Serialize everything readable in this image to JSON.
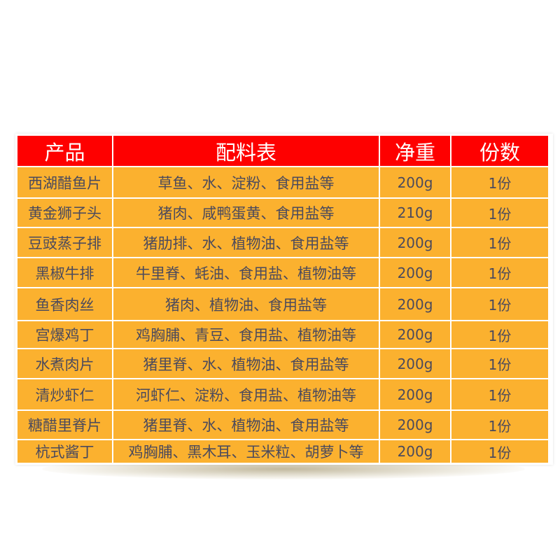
{
  "colors": {
    "header_bg": "#fe0000",
    "cell_bg": "#fbb12f",
    "text": "#4b4a5c"
  },
  "headers": [
    "产品",
    "配料表",
    "净重",
    "份数"
  ],
  "rows": [
    {
      "product": "西湖醋鱼片",
      "ingredients": "草鱼、水、淀粉、食用盐等",
      "weight": "200g",
      "portion": "1份"
    },
    {
      "product": "黄金狮子头",
      "ingredients": "猪肉、咸鸭蛋黄、食用盐等",
      "weight": "210g",
      "portion": "1份"
    },
    {
      "product": "豆豉蒸子排",
      "ingredients": "猪肋排、水、植物油、食用盐等",
      "weight": "200g",
      "portion": "1份"
    },
    {
      "product": "黑椒牛排",
      "ingredients": "牛里脊、蚝油、食用盐、植物油等",
      "weight": "200g",
      "portion": "1份"
    },
    {
      "product": "鱼香肉丝",
      "ingredients": "猪肉、植物油、食用盐等",
      "weight": "200g",
      "portion": "1份"
    },
    {
      "product": "宫爆鸡丁",
      "ingredients": "鸡胸脯、青豆、食用盐、植物油等",
      "weight": "200g",
      "portion": "1份"
    },
    {
      "product": "水煮肉片",
      "ingredients": "猪里脊、水、植物油、食用盐等",
      "weight": "200g",
      "portion": "1份"
    },
    {
      "product": "清炒虾仁",
      "ingredients": "河虾仁、淀粉、食用盐、植物油等",
      "weight": "200g",
      "portion": "1份"
    },
    {
      "product": "糖醋里脊片",
      "ingredients": "猪里脊、水、植物油、食用盐等",
      "weight": "200g",
      "portion": "1份"
    },
    {
      "product": "杭式酱丁",
      "ingredients": "鸡胸脯、黑木耳、玉米粒、胡萝卜等",
      "weight": "200g",
      "portion": "1份"
    }
  ]
}
